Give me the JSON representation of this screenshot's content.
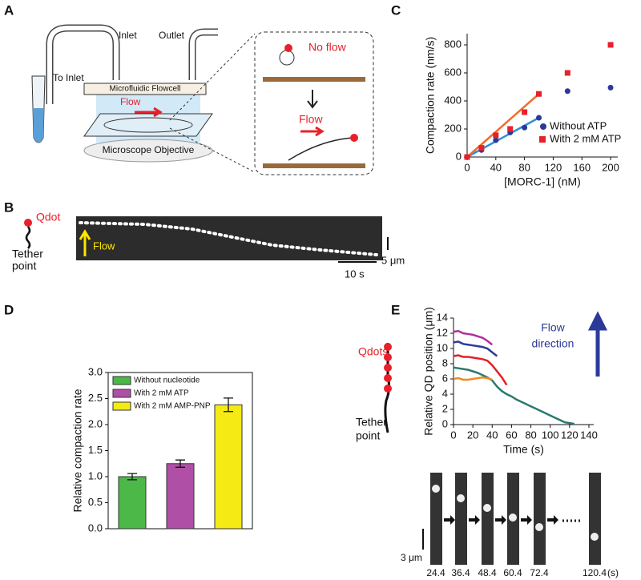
{
  "figure": {
    "panels": [
      "A",
      "B",
      "C",
      "D",
      "E"
    ],
    "a": {
      "inlet": "Inlet",
      "outlet": "Outlet",
      "to_inlet": "To Inlet",
      "flowcell": "Microfluidic Flowcell",
      "flow": "Flow",
      "objective": "Microscope Objective",
      "no_flow": "No flow",
      "flow2": "Flow"
    },
    "b": {
      "qdot": "Qdot",
      "tether": [
        "Tether",
        "point"
      ],
      "flow": "Flow",
      "time_scale": "10 s",
      "length_scale": "5 μm"
    },
    "e": {
      "qdots": "Qdots",
      "tether": [
        "Tether",
        "point"
      ],
      "flow_direction": [
        "Flow",
        "direction"
      ],
      "frame_times": [
        "24.4",
        "36.4",
        "48.4",
        "60.4",
        "72.4",
        "120.4"
      ],
      "time_unit": "(s)",
      "length_scale": "3 μm"
    }
  },
  "chart_data": [
    {
      "type": "scatter",
      "xlabel": "[MORC-1] (nM)",
      "ylabel": "Compaction rate (nm/s)",
      "xlim": [
        0,
        210
      ],
      "xticks": [
        0,
        40,
        80,
        120,
        160,
        200
      ],
      "ylim": [
        0,
        880
      ],
      "yticks": [
        0,
        200,
        400,
        600,
        800
      ],
      "legend": "lower right",
      "series": [
        {
          "name": "Without ATP",
          "color": "#2b3a98",
          "marker": "circle",
          "x": [
            0,
            20,
            40,
            60,
            80,
            100,
            140,
            200
          ],
          "values": [
            0,
            50,
            120,
            175,
            210,
            280,
            470,
            495
          ]
        },
        {
          "name": "With 2 mM ATP",
          "color": "#e8202a",
          "marker": "square",
          "x": [
            0,
            20,
            40,
            60,
            80,
            100,
            140,
            200
          ],
          "values": [
            0,
            65,
            155,
            200,
            320,
            450,
            600,
            800
          ]
        }
      ],
      "fits": [
        {
          "color": "#2e8fd6",
          "x": [
            0,
            100
          ],
          "values": [
            0,
            280
          ]
        },
        {
          "color": "#f26b2a",
          "x": [
            0,
            100
          ],
          "values": [
            0,
            450
          ]
        }
      ]
    },
    {
      "type": "bar",
      "ylabel": "Relative compaction rate",
      "ylim": [
        0,
        3
      ],
      "yticks": [
        {
          "value": 0,
          "label": "0.0"
        },
        0.5,
        {
          "value": 1,
          "label": "1.0"
        },
        1.5,
        {
          "value": 2,
          "label": "2.0"
        },
        2.5,
        {
          "value": 3,
          "label": "3.0"
        }
      ],
      "legend": "upper left",
      "series": [
        {
          "name": "Without nucleotide",
          "color": "#4cb848",
          "values": [
            1.0
          ],
          "errors": [
            0.06
          ]
        },
        {
          "name": "With 2 mM ATP",
          "color": "#b04fa6",
          "values": [
            1.25
          ],
          "errors": [
            0.07
          ]
        },
        {
          "name": "With 2 mM AMP-PNP",
          "color": "#f5ea14",
          "values": [
            2.38
          ],
          "errors": [
            0.13
          ]
        }
      ]
    },
    {
      "type": "line",
      "xlabel": "Time (s)",
      "ylabel": "Relative QD position (μm)",
      "xlim": [
        0,
        145
      ],
      "xticks": [
        0,
        20,
        40,
        60,
        80,
        100,
        120,
        140
      ],
      "ylim": [
        0,
        14
      ],
      "yticks": [
        0,
        2,
        4,
        6,
        8,
        10,
        12,
        14
      ],
      "series": [
        {
          "color": "#b0309a",
          "x": [
            0,
            5,
            10,
            15,
            20,
            25,
            30,
            35,
            40
          ],
          "values": [
            12.2,
            12.3,
            12.0,
            11.9,
            11.8,
            11.6,
            11.4,
            11.0,
            10.5
          ]
        },
        {
          "color": "#2d3a9a",
          "x": [
            0,
            5,
            10,
            15,
            20,
            25,
            30,
            35,
            40,
            45
          ],
          "values": [
            10.8,
            10.9,
            10.6,
            10.5,
            10.4,
            10.3,
            10.2,
            10.0,
            9.5,
            9.0
          ]
        },
        {
          "color": "#e32026",
          "x": [
            0,
            5,
            10,
            15,
            20,
            25,
            30,
            35,
            40,
            45,
            50,
            55
          ],
          "values": [
            9.0,
            9.1,
            8.9,
            8.9,
            8.8,
            8.7,
            8.6,
            8.4,
            7.8,
            7.0,
            6.2,
            5.2
          ]
        },
        {
          "color": "#2a7a6e",
          "x": [
            0,
            5,
            10,
            15,
            20,
            25,
            30,
            35,
            40,
            45,
            50,
            55,
            60,
            65,
            70,
            75,
            80,
            85,
            90,
            95,
            100,
            105,
            110,
            115,
            120,
            125
          ],
          "values": [
            7.5,
            7.4,
            7.3,
            7.2,
            7.0,
            6.8,
            6.5,
            6.2,
            5.8,
            5.0,
            4.4,
            4.0,
            3.7,
            3.3,
            3.0,
            2.7,
            2.4,
            2.1,
            1.8,
            1.5,
            1.2,
            0.9,
            0.6,
            0.3,
            0.2,
            0.1
          ]
        },
        {
          "color": "#f08a24",
          "x": [
            0,
            5,
            10,
            15,
            20,
            25,
            30,
            35,
            40
          ],
          "values": [
            6.0,
            6.1,
            5.9,
            5.9,
            6.0,
            6.1,
            6.2,
            6.1,
            5.9
          ]
        }
      ]
    }
  ]
}
